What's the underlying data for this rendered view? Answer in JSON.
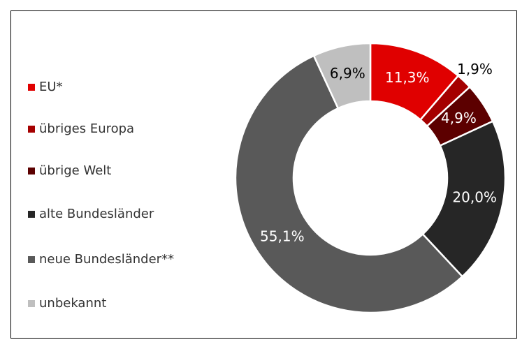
{
  "chart_data": {
    "type": "donut",
    "categories": [
      "EU*",
      "übriges Europa",
      "übrige Welt",
      "alte Bundesländer",
      "neue Bundesländer**",
      "unbekannt"
    ],
    "values": [
      11.3,
      1.9,
      4.9,
      20.0,
      55.1,
      6.9
    ],
    "value_labels": [
      "11,3%",
      "1,9%",
      "4,9%",
      "20,0%",
      "55,1%",
      "6,9%"
    ],
    "colors": [
      "#e00000",
      "#a50000",
      "#5c0000",
      "#262626",
      "#595959",
      "#bfbfbf"
    ],
    "legend": "left"
  }
}
